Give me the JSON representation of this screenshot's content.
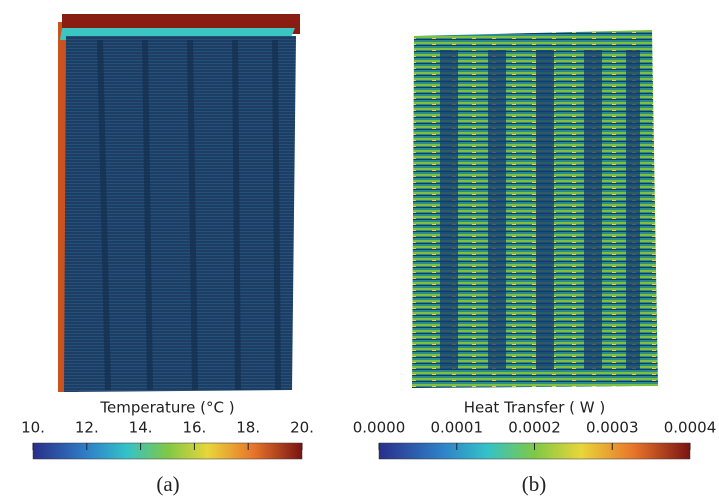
{
  "panels": [
    {
      "label": "(a)",
      "colorbar": {
        "title": "Temperature (°C )",
        "lim": [
          10,
          20
        ],
        "ticks": [
          {
            "value": 10,
            "label": "10."
          },
          {
            "value": 12,
            "label": "12."
          },
          {
            "value": 14,
            "label": "14."
          },
          {
            "value": 16,
            "label": "16."
          },
          {
            "value": 18,
            "label": "18."
          },
          {
            "value": 20,
            "label": "20."
          }
        ]
      }
    },
    {
      "label": "(b)",
      "colorbar": {
        "title": "Heat Transfer ( W )",
        "lim": [
          0,
          0.0004
        ],
        "ticks": [
          {
            "value": 0,
            "label": "0.0000"
          },
          {
            "value": 0.0001,
            "label": "0.0001"
          },
          {
            "value": 0.0002,
            "label": "0.0002"
          },
          {
            "value": 0.0003,
            "label": "0.0003"
          },
          {
            "value": 0.0004,
            "label": "0.0004"
          }
        ]
      }
    }
  ]
}
